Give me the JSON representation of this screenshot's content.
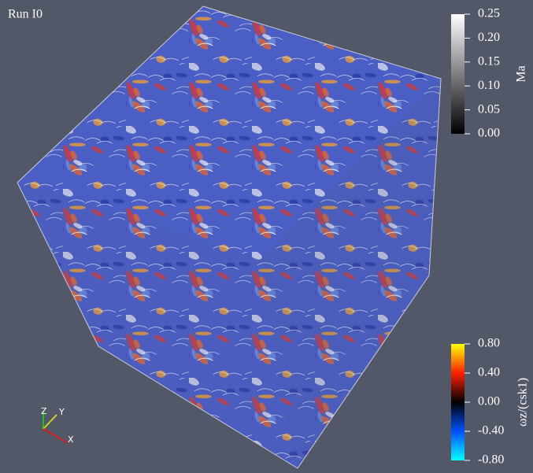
{
  "title": "Run I0",
  "colorbars": [
    {
      "label": "Ma",
      "range": [
        0,
        0.25
      ],
      "ticks": [
        0.25,
        {
          "value": 0.2,
          "label": "0.20"
        },
        0.15,
        {
          "value": 0.1,
          "label": "0.10"
        },
        0.05,
        {
          "value": 0,
          "label": "0.00"
        }
      ],
      "colors": [
        "#000000",
        "#ffffff"
      ]
    },
    {
      "label": "ωz/(csk1)",
      "range": [
        -0.8,
        0.8
      ],
      "ticks": [
        {
          "value": 0.8,
          "label": "0.80"
        },
        {
          "value": 0.4,
          "label": "0.40"
        },
        {
          "value": 0,
          "label": "0.00"
        },
        {
          "value": -0.4,
          "label": "-0.40"
        },
        {
          "value": -0.8,
          "label": "-0.80"
        }
      ],
      "colors": [
        "#00ffff",
        "#0050ff",
        "#000000",
        "#ff2000",
        "#ffff00"
      ]
    }
  ],
  "axes_triad": [
    "Z",
    "Y",
    "X"
  ]
}
